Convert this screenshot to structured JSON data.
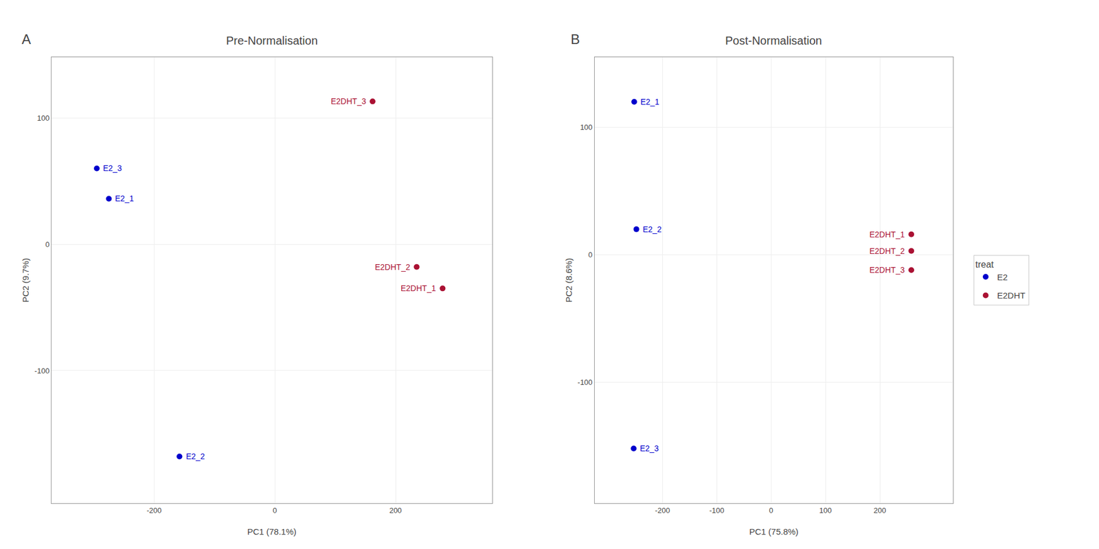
{
  "chart_data": [
    {
      "type": "scatter",
      "panel_label": "A",
      "title": "Pre-Normalisation",
      "xlabel": "PC1 (78.1%)",
      "ylabel": "PC2 (9.7%)",
      "series": [
        {
          "name": "E2",
          "color": "#0000cc",
          "labels": [
            "E2_3",
            "E2_1",
            "E2_2"
          ],
          "x": [
            -295,
            -275,
            -158
          ],
          "y": [
            60,
            36,
            -168
          ]
        },
        {
          "name": "E2DHT",
          "color": "#aa1133",
          "labels": [
            "E2DHT_3",
            "E2DHT_2",
            "E2DHT_1"
          ],
          "x": [
            162,
            235,
            278
          ],
          "y": [
            113,
            -18,
            -35
          ]
        }
      ],
      "xlim": [
        -370,
        360
      ],
      "ylim": [
        -205,
        148
      ],
      "xticks": [
        -200,
        0,
        200
      ],
      "yticks": [
        -100,
        0,
        100
      ],
      "grid": true
    },
    {
      "type": "scatter",
      "panel_label": "B",
      "title": "Post-Normalisation",
      "xlabel": "PC1 (75.8%)",
      "ylabel": "PC2 (8.6%)",
      "series": [
        {
          "name": "E2",
          "color": "#0000cc",
          "labels": [
            "E2_1",
            "E2_2",
            "E2_3"
          ],
          "x": [
            -252,
            -248,
            -253
          ],
          "y": [
            120,
            20,
            -152
          ]
        },
        {
          "name": "E2DHT",
          "color": "#aa1133",
          "labels": [
            "E2DHT_1",
            "E2DHT_2",
            "E2DHT_3"
          ],
          "x": [
            258,
            258,
            258
          ],
          "y": [
            16,
            3,
            -12
          ]
        }
      ],
      "xlim": [
        -325,
        335
      ],
      "ylim": [
        -195,
        155
      ],
      "xticks": [
        -200,
        -100,
        0,
        100,
        200
      ],
      "yticks": [
        -100,
        0,
        100
      ],
      "grid": true,
      "legend": "right",
      "legend_title": "treat"
    }
  ]
}
